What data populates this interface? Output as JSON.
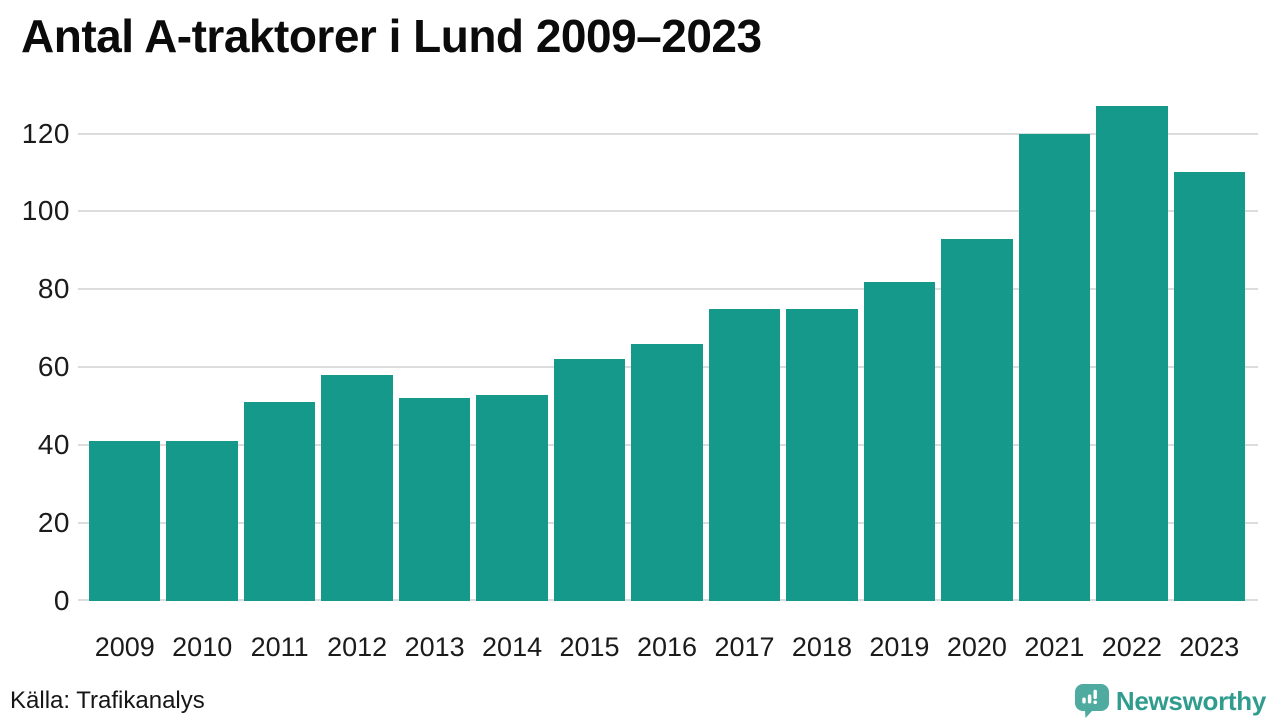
{
  "chart": {
    "title": "Antal A-traktorer i Lund 2009–2023"
  },
  "footer": {
    "source": "Källa: Trafikanalys",
    "brand": "Newsworthy"
  },
  "icons": {
    "brand_logo": "newsworthy-speech-bubble-bar-chart-icon"
  },
  "colors": {
    "bar": "#15998B",
    "grid": "#dcdcdc",
    "title_text": "#0b0b0b",
    "axis_text": "#1b1b1b",
    "source_text": "#161616",
    "brand_text": "#2f9c8e",
    "brand_icon": "#4fab9f"
  },
  "chart_data": {
    "type": "bar",
    "title": "Antal A-traktorer i Lund 2009–2023",
    "categories": [
      "2009",
      "2010",
      "2011",
      "2012",
      "2013",
      "2014",
      "2015",
      "2016",
      "2017",
      "2018",
      "2019",
      "2020",
      "2021",
      "2022",
      "2023"
    ],
    "values": [
      41,
      41,
      51,
      58,
      52,
      53,
      62,
      66,
      75,
      75,
      82,
      93,
      120,
      127,
      110
    ],
    "xlabel": "",
    "ylabel": "",
    "ylim": [
      0,
      128.6
    ],
    "yticks": [
      0,
      20,
      40,
      60,
      80,
      100,
      120
    ],
    "grid": true,
    "legend": false,
    "bar_color": "#15998B",
    "source": "Källa: Trafikanalys"
  }
}
